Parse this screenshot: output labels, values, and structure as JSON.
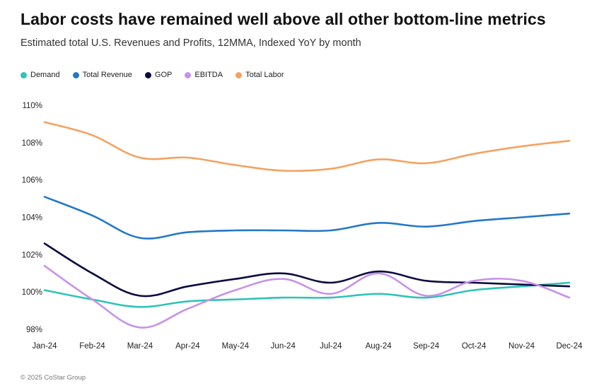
{
  "title": "Labor costs have remained well above all other bottom-line metrics",
  "subtitle": "Estimated total U.S. Revenues and Profits, 12MMA, Indexed YoY by month",
  "footer": "© 2025 CoStar Group",
  "chart_data": {
    "type": "line",
    "title": "Labor costs have remained well above all other bottom-line metrics",
    "subtitle": "Estimated total U.S. Revenues and Profits, 12MMA, Indexed YoY by month",
    "x": [
      "Jan-24",
      "Feb-24",
      "Mar-24",
      "Apr-24",
      "May-24",
      "Jun-24",
      "Jul-24",
      "Aug-24",
      "Sep-24",
      "Oct-24",
      "Nov-24",
      "Dec-24"
    ],
    "yticks": [
      "98%",
      "100%",
      "102%",
      "104%",
      "106%",
      "108%",
      "110%"
    ],
    "ylim": [
      98,
      110
    ],
    "grid": false,
    "legend_position": "top-left",
    "series": [
      {
        "name": "Demand",
        "color": "#2EC4B6",
        "values": [
          100.1,
          99.6,
          99.2,
          99.5,
          99.6,
          99.7,
          99.7,
          99.9,
          99.7,
          100.1,
          100.3,
          100.5
        ]
      },
      {
        "name": "Total Revenue",
        "color": "#2478C8",
        "values": [
          105.1,
          104.1,
          102.9,
          103.2,
          103.3,
          103.3,
          103.3,
          103.7,
          103.5,
          103.8,
          104.0,
          104.2
        ]
      },
      {
        "name": "GOP",
        "color": "#0B0C3F",
        "values": [
          102.6,
          101.0,
          99.8,
          100.3,
          100.7,
          101.0,
          100.5,
          101.1,
          100.6,
          100.5,
          100.4,
          100.3
        ]
      },
      {
        "name": "EBITDA",
        "color": "#C792EA",
        "values": [
          101.4,
          99.6,
          98.1,
          99.1,
          100.1,
          100.7,
          99.9,
          101.0,
          99.8,
          100.6,
          100.6,
          99.7
        ]
      },
      {
        "name": "Total Labor",
        "color": "#F4A261",
        "values": [
          109.1,
          108.4,
          107.2,
          107.2,
          106.8,
          106.5,
          106.6,
          107.1,
          106.9,
          107.4,
          107.8,
          108.1
        ]
      }
    ]
  }
}
